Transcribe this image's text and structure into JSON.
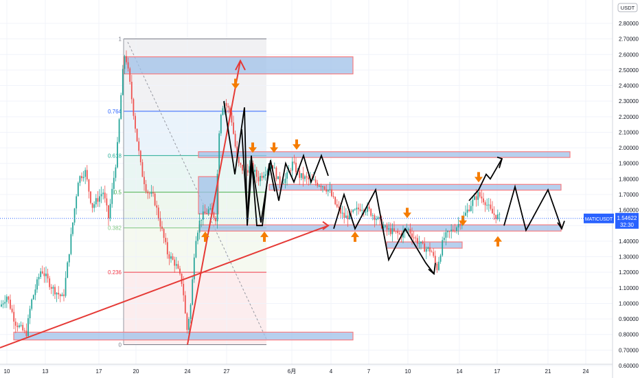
{
  "chart_data": {
    "type": "candlestick",
    "title": "",
    "xlabel": "",
    "ylabel": "",
    "y_axis": {
      "position": "right",
      "unit_badge": "USDT",
      "ylim": [
        0.555,
        2.87
      ],
      "ticks": [
        "2.80000",
        "2.70000",
        "2.60000",
        "2.50000",
        "2.40000",
        "2.30000",
        "2.20000",
        "2.10000",
        "2.00000",
        "1.90000",
        "1.80000",
        "1.70000",
        "1.60000",
        "1.50000",
        "1.40000",
        "1.30000",
        "1.20000",
        "1.10000",
        "1.00000",
        "0.90000",
        "0.80000",
        "0.70000",
        "0.60000"
      ]
    },
    "x_axis": {
      "ticks": [
        "10",
        "13",
        "17",
        "20",
        "24",
        "27",
        "6月",
        "4",
        "7",
        "10",
        "14",
        "17",
        "21",
        "24"
      ]
    },
    "price_label": {
      "symbol": "MATICUSDT",
      "value": "1.54622",
      "countdown": "32:30",
      "price": 1.54622
    },
    "fib_levels": [
      {
        "label": "1",
        "price": 2.7,
        "color": "#787b86"
      },
      {
        "label": "0.764",
        "price": 2.235,
        "color": "#2962ff"
      },
      {
        "label": "0.618",
        "price": 1.95,
        "color": "#22ab94"
      },
      {
        "label": "0.5",
        "price": 1.715,
        "color": "#4caf50"
      },
      {
        "label": "0.382",
        "price": 1.485,
        "color": "#81c784"
      },
      {
        "label": "0.236",
        "price": 1.2,
        "color": "#f23645"
      },
      {
        "label": "0",
        "price": 0.735,
        "color": "#787b86"
      }
    ],
    "grid": true,
    "colors": {
      "up": "#26a69a",
      "down": "#ef5350",
      "zone_fill": "#9fc0e8",
      "zone_border": "#f77c80",
      "drawing_red": "#e53935",
      "arrow_orange": "#f57c00",
      "drawing_black": "#000000",
      "price_badge": "#2962ff"
    }
  }
}
